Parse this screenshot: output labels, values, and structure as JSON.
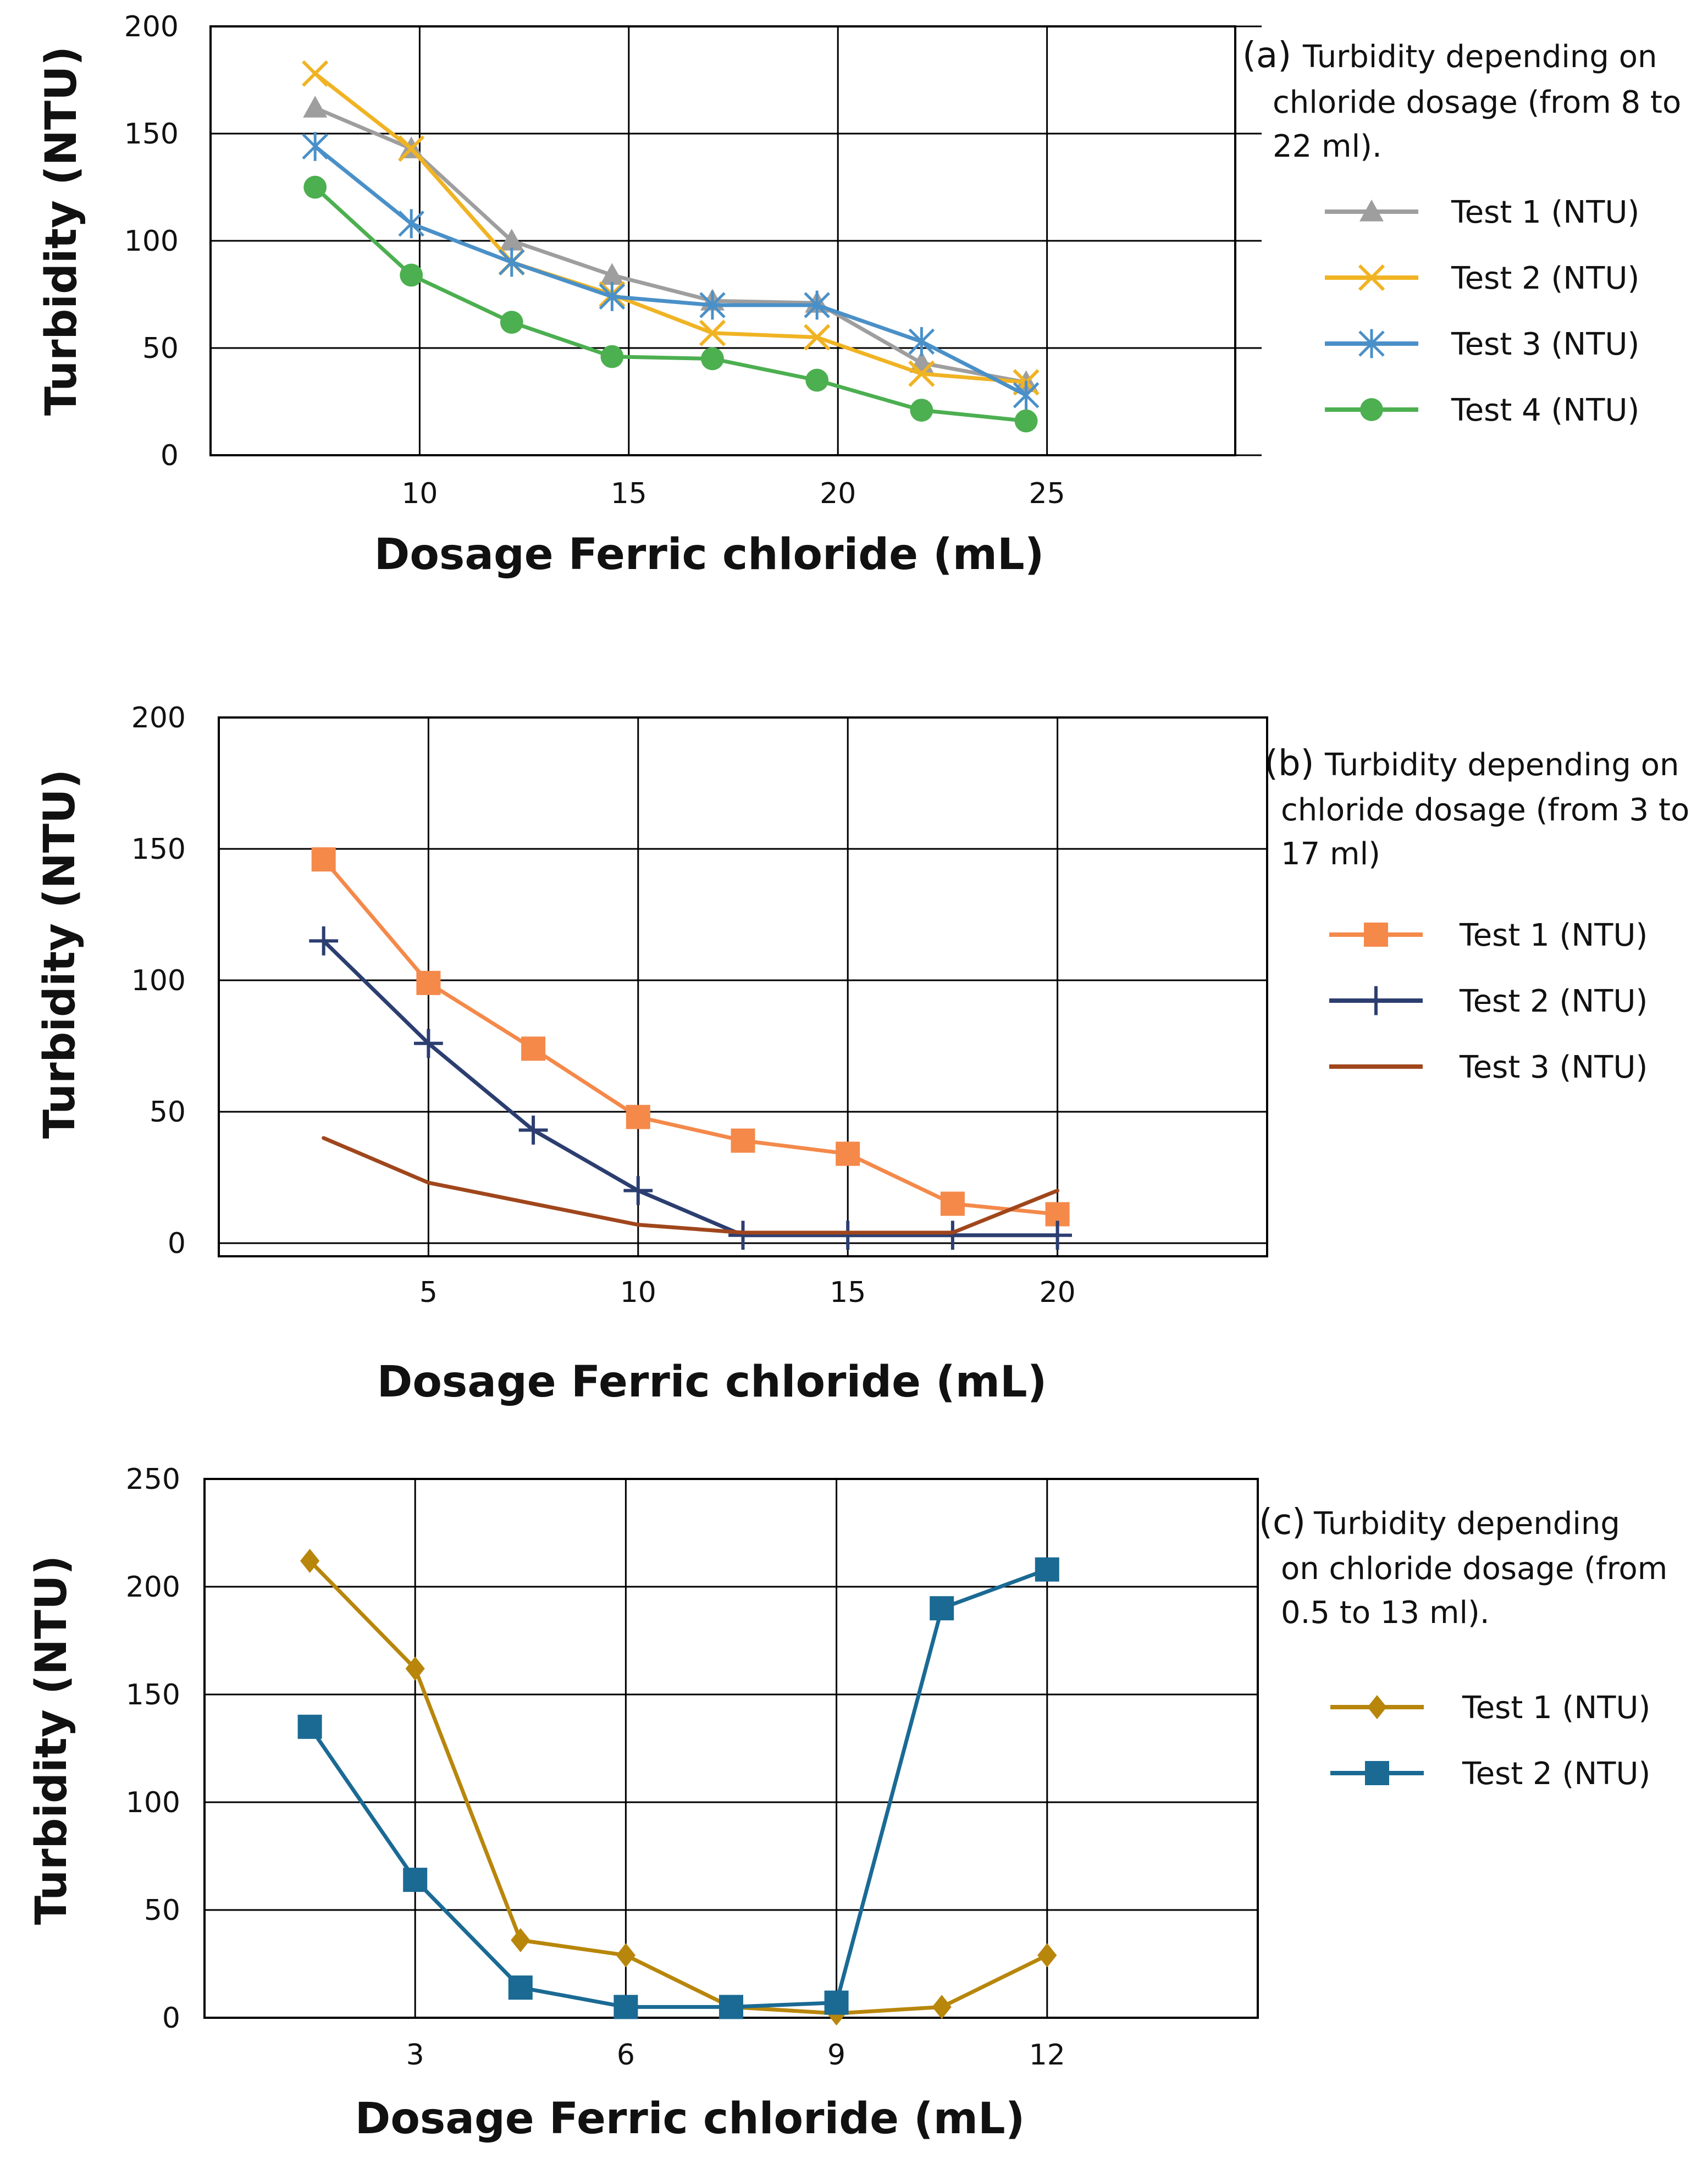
{
  "chart_data": [
    {
      "panel": "(a)",
      "type": "line",
      "title": "Turbidity depending on chloride dosage (from 8 to 22 ml).",
      "title_lines": [
        "Turbidity depending on",
        "chloride dosage (from 8 to",
        "22 ml)."
      ],
      "xlabel": "Dosage Ferric chloride (mL)",
      "ylabel": "Turbidity (NTU)",
      "xlim": [
        5,
        29.5
      ],
      "ylim": [
        0,
        200
      ],
      "xticks": [
        10,
        15,
        20,
        25
      ],
      "yticks": [
        0,
        50,
        100,
        150,
        200
      ],
      "grid": true,
      "legend_position": "right",
      "series": [
        {
          "name": "Test 1 (NTU)",
          "color": "#9e9e9e",
          "marker": "triangle",
          "x": [
            7.5,
            9.8,
            12.2,
            14.6,
            17,
            19.5,
            22,
            24.5
          ],
          "y": [
            162,
            143,
            100,
            84,
            72,
            71,
            43,
            34
          ]
        },
        {
          "name": "Test 2 (NTU)",
          "color": "#f0b323",
          "marker": "x",
          "x": [
            7.5,
            9.8,
            12.2,
            14.6,
            17,
            19.5,
            22,
            24.5
          ],
          "y": [
            178,
            143,
            90,
            75,
            57,
            55,
            38,
            34
          ]
        },
        {
          "name": "Test 3 (NTU)",
          "color": "#4a90c8",
          "marker": "asterisk",
          "x": [
            7.5,
            9.8,
            12.2,
            14.6,
            17,
            19.5,
            22,
            24.5
          ],
          "y": [
            144,
            108,
            90,
            74,
            70,
            70,
            53,
            28
          ]
        },
        {
          "name": "Test 4 (NTU)",
          "color": "#4caf50",
          "marker": "circle",
          "x": [
            7.5,
            9.8,
            12.2,
            14.6,
            17,
            19.5,
            22,
            24.5
          ],
          "y": [
            125,
            84,
            62,
            46,
            45,
            35,
            21,
            16
          ]
        }
      ]
    },
    {
      "panel": "(b)",
      "type": "line",
      "title": "Turbidity depending on chloride dosage (from 3 to 17 ml)",
      "title_lines": [
        "Turbidity depending on",
        "chloride dosage (from 3 to",
        "17 ml)"
      ],
      "xlabel": "Dosage Ferric chloride (mL)",
      "ylabel": "Turbidity (NTU)",
      "xlim": [
        0,
        25
      ],
      "ylim": [
        -5,
        200
      ],
      "xticks": [
        5,
        10,
        15,
        20
      ],
      "yticks": [
        0,
        50,
        100,
        150,
        200
      ],
      "grid": true,
      "legend_position": "right",
      "series": [
        {
          "name": "Test 1 (NTU)",
          "color": "#f4894a",
          "marker": "square",
          "x": [
            2.5,
            5,
            7.5,
            10,
            12.5,
            15,
            17.5,
            20
          ],
          "y": [
            146,
            99,
            74,
            48,
            39,
            34,
            15,
            11
          ]
        },
        {
          "name": "Test 2 (NTU)",
          "color": "#2c3e70",
          "marker": "plus",
          "x": [
            2.5,
            5,
            7.5,
            10,
            12.5,
            15,
            17.5,
            20
          ],
          "y": [
            115,
            76,
            43,
            20,
            3,
            3,
            3,
            3
          ]
        },
        {
          "name": "Test 3 (NTU)",
          "color": "#a0461c",
          "marker": "none",
          "x": [
            2.5,
            5,
            7.5,
            10,
            12.5,
            15,
            17.5,
            20
          ],
          "y": [
            40,
            23,
            15,
            7,
            4,
            4,
            4,
            20
          ]
        }
      ]
    },
    {
      "panel": "(c)",
      "type": "line",
      "title": "Turbidity depending on chloride dosage (from 0.5 to 13 ml).",
      "title_lines": [
        "Turbidity depending",
        "on chloride dosage (from",
        "0.5 to 13 ml)."
      ],
      "xlabel": "Dosage Ferric chloride (mL)",
      "ylabel": "Turbidity (NTU)",
      "xlim": [
        0,
        15
      ],
      "ylim": [
        0,
        250
      ],
      "xticks": [
        3,
        6,
        9,
        12
      ],
      "yticks": [
        0,
        50,
        100,
        150,
        200,
        250
      ],
      "grid": true,
      "legend_position": "right",
      "series": [
        {
          "name": "Test 1 (NTU)",
          "color": "#b8860b",
          "marker": "diamond",
          "x": [
            1.5,
            3,
            4.5,
            6,
            7.5,
            9,
            10.5,
            12
          ],
          "y": [
            212,
            162,
            36,
            29,
            5,
            2,
            5,
            29
          ]
        },
        {
          "name": "Test 2 (NTU)",
          "color": "#1a6a94",
          "marker": "square",
          "x": [
            1.5,
            3,
            4.5,
            6,
            7.5,
            9,
            10.5,
            12
          ],
          "y": [
            135,
            64,
            14,
            5,
            5,
            7,
            190,
            208
          ]
        }
      ]
    }
  ]
}
